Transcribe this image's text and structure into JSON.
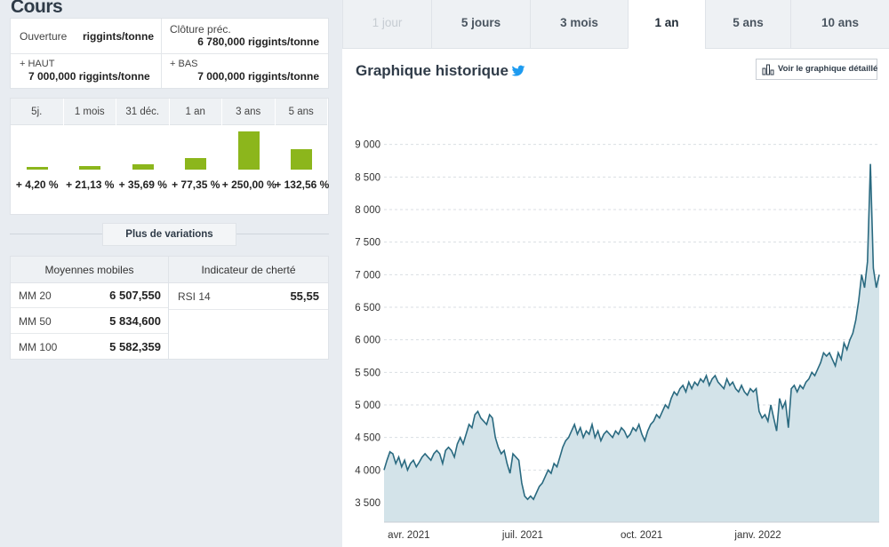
{
  "header": {
    "title": "Cours"
  },
  "price": {
    "ouverture_label": "Ouverture",
    "ouverture_value": "riggints/tonne",
    "cloture_label": "Clôture préc.",
    "cloture_value": "6 780,000 riggints/tonne",
    "haut_label": "+ HAUT",
    "haut_value": "7 000,000 riggints/tonne",
    "bas_label": "+ BAS",
    "bas_value": "7 000,000 riggints/tonne"
  },
  "variations": {
    "accent_color": "#8cb61c",
    "items": [
      {
        "period": "5j.",
        "pct": "+ 4,20 %",
        "value": 4.2
      },
      {
        "period": "1 mois",
        "pct": "+ 21,13 %",
        "value": 21.13
      },
      {
        "period": "31 déc.",
        "pct": "+ 35,69 %",
        "value": 35.69
      },
      {
        "period": "1 an",
        "pct": "+ 77,35 %",
        "value": 77.35
      },
      {
        "period": "3 ans",
        "pct": "+ 250,00 %",
        "value": 250.0
      },
      {
        "period": "5 ans",
        "pct": "+ 132,56 %",
        "value": 132.56
      }
    ],
    "more_label": "Plus de variations"
  },
  "indicators": {
    "moyennes_header": "Moyennes mobiles",
    "cherte_header": "Indicateur de cherté",
    "moyennes": [
      {
        "name": "MM 20",
        "value": "6 507,550"
      },
      {
        "name": "MM 50",
        "value": "5 834,600"
      },
      {
        "name": "MM 100",
        "value": "5 582,359"
      }
    ],
    "rsi": {
      "name": "RSI 14",
      "value": "55,55"
    }
  },
  "tabs": [
    {
      "label": "1 jour",
      "state": "disabled"
    },
    {
      "label": "5 jours",
      "state": "normal"
    },
    {
      "label": "3 mois",
      "state": "normal"
    },
    {
      "label": "1 an",
      "state": "active"
    },
    {
      "label": "5 ans",
      "state": "normal"
    },
    {
      "label": "10 ans",
      "state": "normal"
    }
  ],
  "chart_panel": {
    "title": "Graphique historique",
    "share_icon": "twitter-icon",
    "detail_label": "Voir le graphique détaillé",
    "detail_icon": "bar-chart-icon"
  },
  "chart_data": {
    "type": "area",
    "color_line": "#2a6a80",
    "color_fill": "#d3e3e9",
    "ylim": [
      3200,
      9200
    ],
    "yticks": [
      "3 500",
      "4 000",
      "4 500",
      "5 000",
      "5 500",
      "6 000",
      "6 500",
      "7 000",
      "7 500",
      "8 000",
      "8 500",
      "9 000"
    ],
    "ytick_values": [
      3500,
      4000,
      4500,
      5000,
      5500,
      6000,
      6500,
      7000,
      7500,
      8000,
      8500,
      9000
    ],
    "xticks": [
      {
        "label": "avr. 2021",
        "t": 0.05
      },
      {
        "label": "juil. 2021",
        "t": 0.28
      },
      {
        "label": "oct. 2021",
        "t": 0.52
      },
      {
        "label": "janv. 2022",
        "t": 0.755
      }
    ],
    "grid": true,
    "series": [
      {
        "values": [
          4000,
          4150,
          4280,
          4250,
          4100,
          4200,
          4050,
          4150,
          4000,
          4100,
          4150,
          4050,
          4120,
          4200,
          4250,
          4200,
          4150,
          4250,
          4300,
          4250,
          4100,
          4300,
          4350,
          4300,
          4200,
          4400,
          4500,
          4400,
          4550,
          4700,
          4650,
          4850,
          4900,
          4800,
          4750,
          4700,
          4850,
          4800,
          4500,
          4350,
          4250,
          4300,
          4100,
          3950,
          4250,
          4200,
          4150,
          3800,
          3600,
          3550,
          3600,
          3550,
          3650,
          3750,
          3800,
          3900,
          4000,
          3950,
          4100,
          4050,
          4200,
          4350,
          4450,
          4500,
          4600,
          4700,
          4550,
          4650,
          4500,
          4600,
          4550,
          4700,
          4500,
          4600,
          4450,
          4550,
          4600,
          4550,
          4500,
          4600,
          4550,
          4650,
          4600,
          4500,
          4550,
          4650,
          4600,
          4700,
          4550,
          4450,
          4600,
          4700,
          4750,
          4850,
          4800,
          4900,
          5000,
          4950,
          5100,
          5200,
          5150,
          5250,
          5300,
          5200,
          5350,
          5250,
          5350,
          5300,
          5400,
          5350,
          5450,
          5300,
          5400,
          5450,
          5350,
          5300,
          5250,
          5400,
          5300,
          5350,
          5250,
          5200,
          5300,
          5200,
          5150,
          5250,
          5200,
          5250,
          4900,
          4800,
          4850,
          4750,
          5000,
          4800,
          4600,
          5100,
          4950,
          5050,
          4650,
          5250,
          5300,
          5200,
          5300,
          5250,
          5350,
          5400,
          5500,
          5450,
          5550,
          5650,
          5800,
          5750,
          5800,
          5700,
          5600,
          5800,
          5700,
          5950,
          5850,
          6000,
          6100,
          6300,
          6600,
          7000,
          6800,
          7200,
          8700,
          7100,
          6800,
          7000
        ]
      }
    ]
  }
}
